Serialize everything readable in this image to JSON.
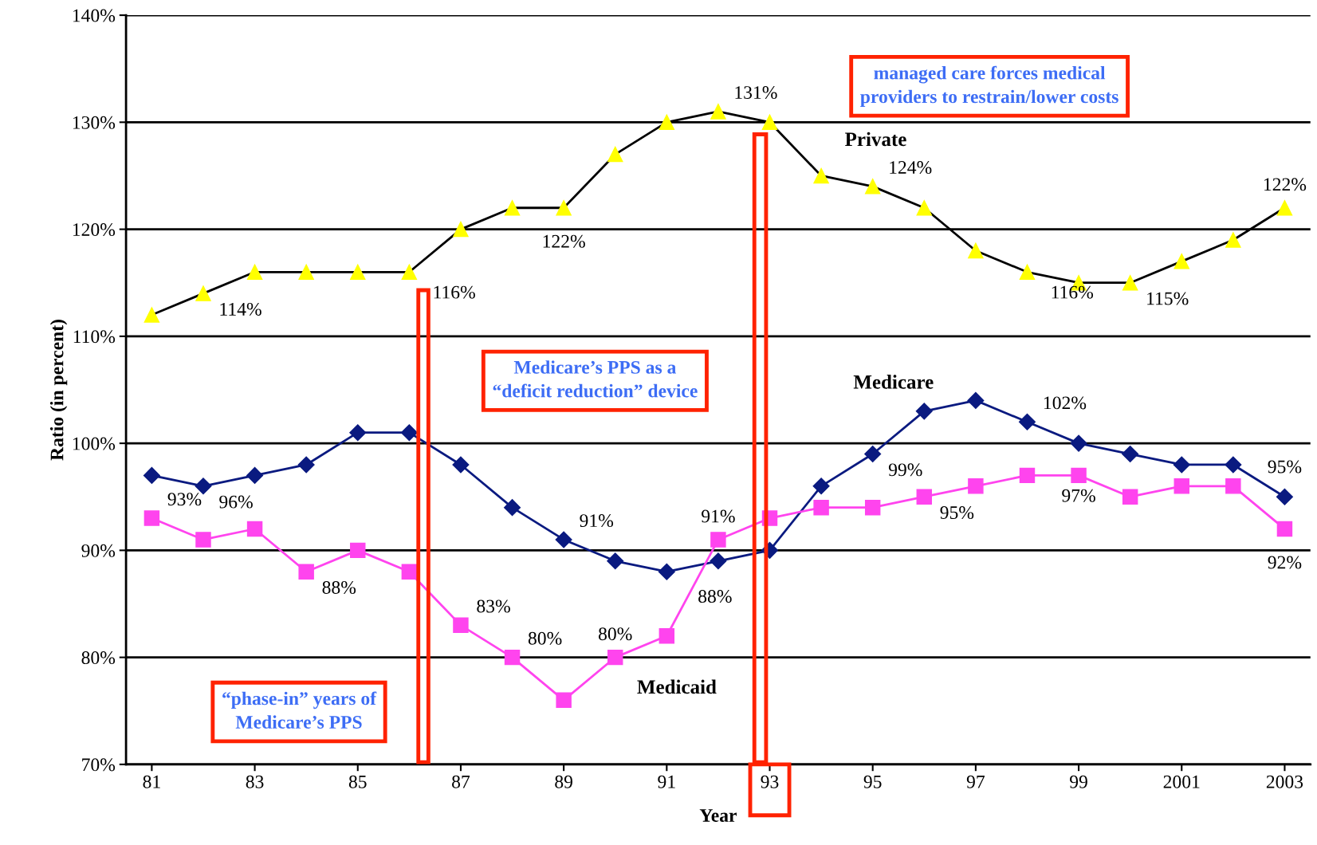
{
  "chart_data": {
    "type": "line",
    "xlabel": "Year",
    "ylabel": "Ratio (in percent)",
    "x": [
      1981,
      1982,
      1983,
      1984,
      1985,
      1986,
      1987,
      1988,
      1989,
      1990,
      1991,
      1992,
      1993,
      1994,
      1995,
      1996,
      1997,
      1998,
      1999,
      2000,
      2001,
      2002,
      2003
    ],
    "series": [
      {
        "name": "Private",
        "color": "#ffff00",
        "marker": "triangle",
        "values": [
          112,
          114,
          116,
          116,
          116,
          116,
          120,
          122,
          122,
          127,
          130,
          131,
          130,
          125,
          124,
          122,
          118,
          116,
          115,
          115,
          117,
          119,
          122
        ],
        "value_labels": [
          null,
          "114%",
          null,
          null,
          null,
          "116%",
          null,
          null,
          "122%",
          null,
          null,
          "131%",
          null,
          null,
          "124%",
          null,
          null,
          "116%",
          null,
          "115%",
          null,
          null,
          "122%"
        ]
      },
      {
        "name": "Medicare",
        "color": "#0a1a80",
        "marker": "diamond",
        "values": [
          97,
          96,
          97,
          98,
          101,
          101,
          98,
          94,
          91,
          89,
          88,
          89,
          90,
          96,
          99,
          103,
          104,
          102,
          100,
          99,
          98,
          98,
          95
        ],
        "value_labels": [
          null,
          "96%",
          null,
          null,
          null,
          null,
          null,
          null,
          "91%",
          null,
          "88%",
          null,
          null,
          null,
          "99%",
          null,
          null,
          "102%",
          null,
          null,
          null,
          null,
          "95%"
        ]
      },
      {
        "name": "Medicaid",
        "color": "#ff44ee",
        "marker": "square",
        "values": [
          93,
          91,
          92,
          88,
          90,
          88,
          83,
          80,
          76,
          80,
          82,
          91,
          93,
          94,
          94,
          95,
          96,
          97,
          97,
          95,
          96,
          96,
          92
        ],
        "value_labels": [
          "93%",
          null,
          null,
          "88%",
          null,
          null,
          "83%",
          "80%",
          null,
          "80%",
          null,
          "91%",
          null,
          null,
          null,
          "95%",
          null,
          null,
          "97%",
          null,
          null,
          null,
          "92%"
        ]
      }
    ],
    "xlim": [
      1980.5,
      2003.5
    ],
    "xticks": [
      {
        "value": 1981,
        "label": "81"
      },
      {
        "value": 1983,
        "label": "83"
      },
      {
        "value": 1985,
        "label": "85"
      },
      {
        "value": 1987,
        "label": "87"
      },
      {
        "value": 1989,
        "label": "89"
      },
      {
        "value": 1991,
        "label": "91"
      },
      {
        "value": 1993,
        "label": "93"
      },
      {
        "value": 1995,
        "label": "95"
      },
      {
        "value": 1997,
        "label": "97"
      },
      {
        "value": 1999,
        "label": "99"
      },
      {
        "value": 2001,
        "label": "2001"
      },
      {
        "value": 2003,
        "label": "2003"
      }
    ],
    "ylim": [
      70,
      140
    ],
    "yticks": [
      {
        "value": 70,
        "label": "70%"
      },
      {
        "value": 80,
        "label": "80%"
      },
      {
        "value": 90,
        "label": "90%"
      },
      {
        "value": 100,
        "label": "100%"
      },
      {
        "value": 110,
        "label": "110%"
      },
      {
        "value": 120,
        "label": "120%"
      },
      {
        "value": 130,
        "label": "130%"
      },
      {
        "value": 140,
        "label": "140%"
      }
    ],
    "grid": "y",
    "annotations": [
      "managed care forces medical\nproviders to restrain/lower costs",
      "Medicare’s PPS as a\n“deficit reduction” device",
      "“phase-in” years of\nMedicare’s PPS"
    ]
  }
}
